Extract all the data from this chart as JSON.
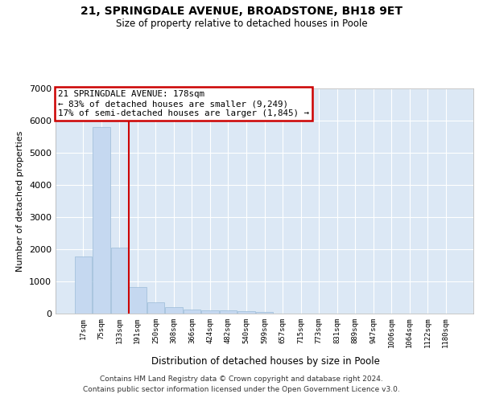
{
  "title1": "21, SPRINGDALE AVENUE, BROADSTONE, BH18 9ET",
  "title2": "Size of property relative to detached houses in Poole",
  "xlabel": "Distribution of detached houses by size in Poole",
  "ylabel": "Number of detached properties",
  "bar_labels": [
    "17sqm",
    "75sqm",
    "133sqm",
    "191sqm",
    "250sqm",
    "308sqm",
    "366sqm",
    "424sqm",
    "482sqm",
    "540sqm",
    "599sqm",
    "657sqm",
    "715sqm",
    "773sqm",
    "831sqm",
    "889sqm",
    "947sqm",
    "1006sqm",
    "1064sqm",
    "1122sqm",
    "1180sqm"
  ],
  "bar_values": [
    1780,
    5800,
    2060,
    820,
    340,
    190,
    120,
    105,
    90,
    75,
    60,
    0,
    0,
    0,
    0,
    0,
    0,
    0,
    0,
    0,
    0
  ],
  "bar_color": "#c5d8f0",
  "bar_edge_color": "#9bbcd8",
  "vline_color": "#cc0000",
  "annotation_line1": "21 SPRINGDALE AVENUE: 178sqm",
  "annotation_line2": "← 83% of detached houses are smaller (9,249)",
  "annotation_line3": "17% of semi-detached houses are larger (1,845) →",
  "ann_box_color": "#cc0000",
  "ylim": [
    0,
    7000
  ],
  "yticks": [
    0,
    1000,
    2000,
    3000,
    4000,
    5000,
    6000,
    7000
  ],
  "bg_color": "#dce8f5",
  "grid_color": "#ffffff",
  "footer1": "Contains HM Land Registry data © Crown copyright and database right 2024.",
  "footer2": "Contains public sector information licensed under the Open Government Licence v3.0."
}
